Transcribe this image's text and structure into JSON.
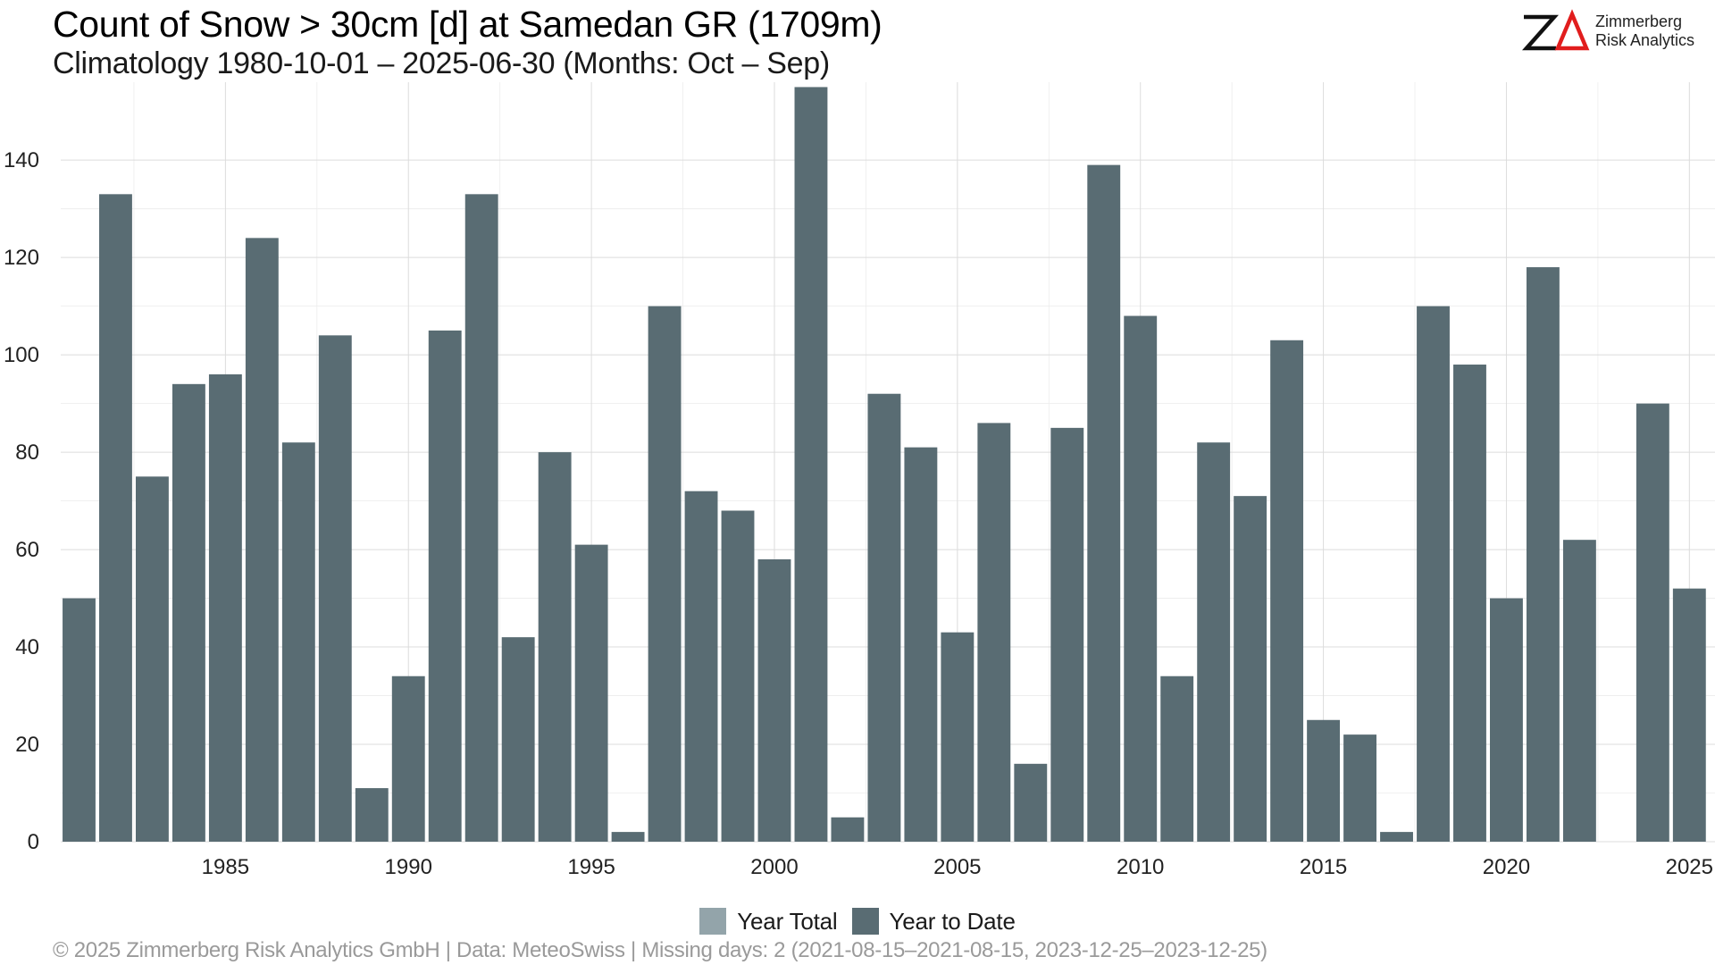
{
  "header": {
    "title": "Count of Snow > 30cm [d] at Samedan  GR (1709m)",
    "subtitle": "Climatology 1980-10-01 – 2025-06-30 (Months: Oct – Sep)"
  },
  "logo": {
    "mark_icon": "zimmerberg-logo-icon",
    "line1": "Zimmerberg",
    "line2": "Risk Analytics",
    "accent_color": "#e11d1d"
  },
  "legend": {
    "items": [
      {
        "label": "Year Total",
        "color": "#93a4aa"
      },
      {
        "label": "Year to Date",
        "color": "#596c73"
      }
    ]
  },
  "footer": {
    "text": "©  2025 Zimmerberg Risk Analytics GmbH | Data: MeteoSwiss | Missing days: 2 (2021-08-15–2021-08-15, 2023-12-25–2023-12-25)"
  },
  "chart_data": {
    "type": "bar",
    "x": [
      1981,
      1982,
      1983,
      1984,
      1985,
      1986,
      1987,
      1988,
      1989,
      1990,
      1991,
      1992,
      1993,
      1994,
      1995,
      1996,
      1997,
      1998,
      1999,
      2000,
      2001,
      2002,
      2003,
      2004,
      2005,
      2006,
      2007,
      2008,
      2009,
      2010,
      2011,
      2012,
      2013,
      2014,
      2015,
      2016,
      2017,
      2018,
      2019,
      2020,
      2021,
      2022,
      2023,
      2024,
      2025
    ],
    "series": [
      {
        "name": "Year to Date",
        "color": "#596c73",
        "values": [
          50,
          133,
          75,
          94,
          96,
          124,
          82,
          104,
          11,
          34,
          105,
          133,
          42,
          80,
          61,
          2,
          110,
          72,
          68,
          58,
          155,
          5,
          92,
          81,
          43,
          86,
          16,
          85,
          139,
          108,
          34,
          82,
          71,
          103,
          25,
          22,
          2,
          110,
          98,
          50,
          118,
          62,
          null,
          90,
          52
        ]
      }
    ],
    "x_ticks": [
      1985,
      1990,
      1995,
      2000,
      2005,
      2010,
      2015,
      2020,
      2025
    ],
    "y_ticks": [
      0,
      20,
      40,
      60,
      80,
      100,
      120,
      140
    ],
    "xlim": [
      1980.5,
      2025.7
    ],
    "ylim": [
      0,
      156
    ],
    "grid": true,
    "legend_position": "bottom"
  }
}
